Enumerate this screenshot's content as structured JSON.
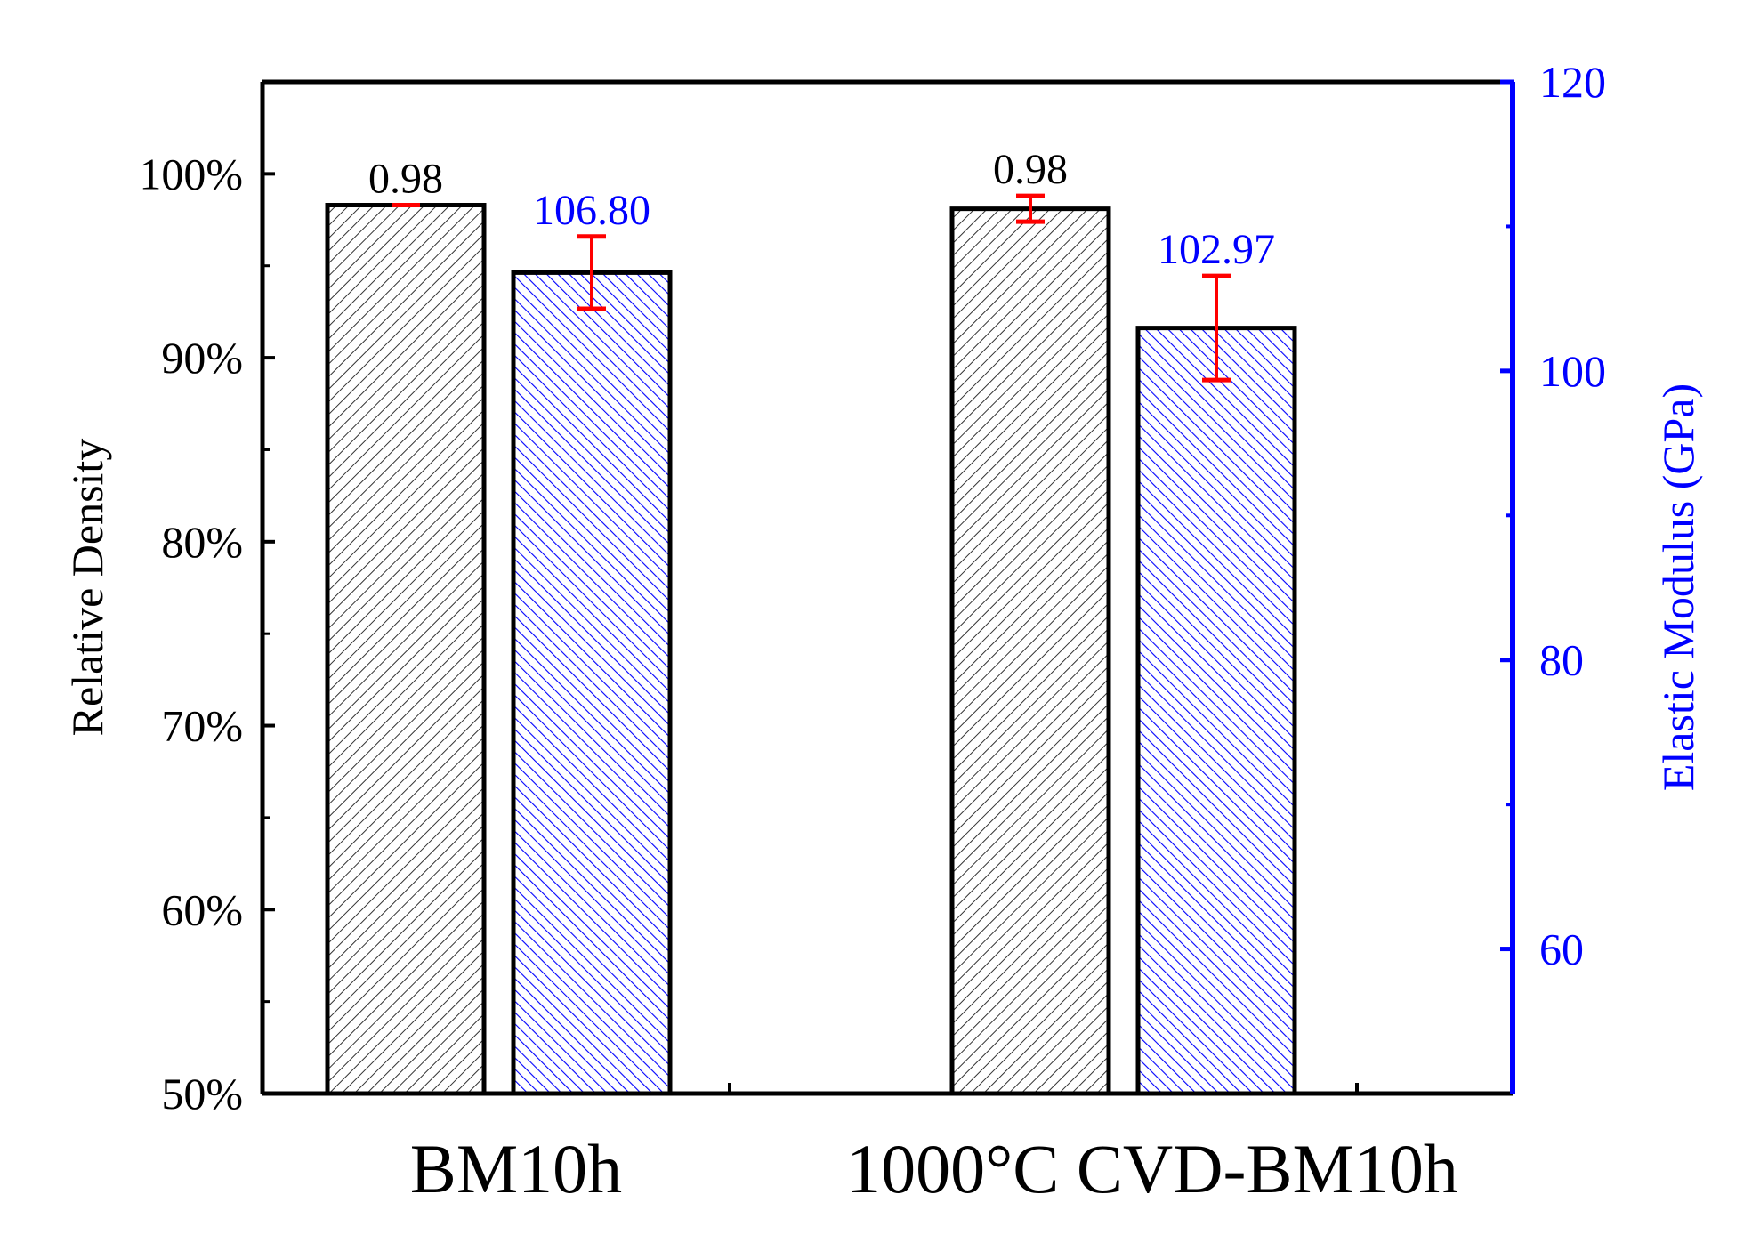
{
  "chart_data": {
    "type": "bar",
    "categories": [
      "BM10h",
      "1000°C CVD-BM10h"
    ],
    "series": [
      {
        "name": "Relative Density",
        "axis": "left",
        "values": [
          0.983,
          0.981
        ],
        "error": [
          0.0,
          0.007
        ],
        "labels": [
          "0.98",
          "0.98"
        ],
        "color": "#000000",
        "hatch_color": "#000000"
      },
      {
        "name": "Elastic Modulus",
        "axis": "right",
        "values": [
          106.8,
          102.97
        ],
        "error": [
          2.5,
          3.6
        ],
        "labels": [
          "106.80",
          "102.97"
        ],
        "color": "#0000ff",
        "hatch_color": "#0000ff"
      }
    ],
    "left_axis": {
      "label": "Relative Density",
      "ylim": [
        0.5,
        1.05
      ],
      "ticks": [
        0.5,
        0.6,
        0.7,
        0.8,
        0.9,
        1.0
      ],
      "tick_labels": [
        "50%",
        "60%",
        "70%",
        "80%",
        "90%",
        "100%"
      ],
      "minor_step": 0.05
    },
    "right_axis": {
      "label": "Elastic Modulus (GPa)",
      "ylim": [
        50,
        120
      ],
      "ticks": [
        60,
        80,
        100,
        120
      ],
      "tick_labels": [
        "60",
        "80",
        "100",
        "120"
      ],
      "minor_step": 10,
      "color": "#0000ff"
    },
    "errorbar_color": "#ff0000",
    "grid": false
  }
}
